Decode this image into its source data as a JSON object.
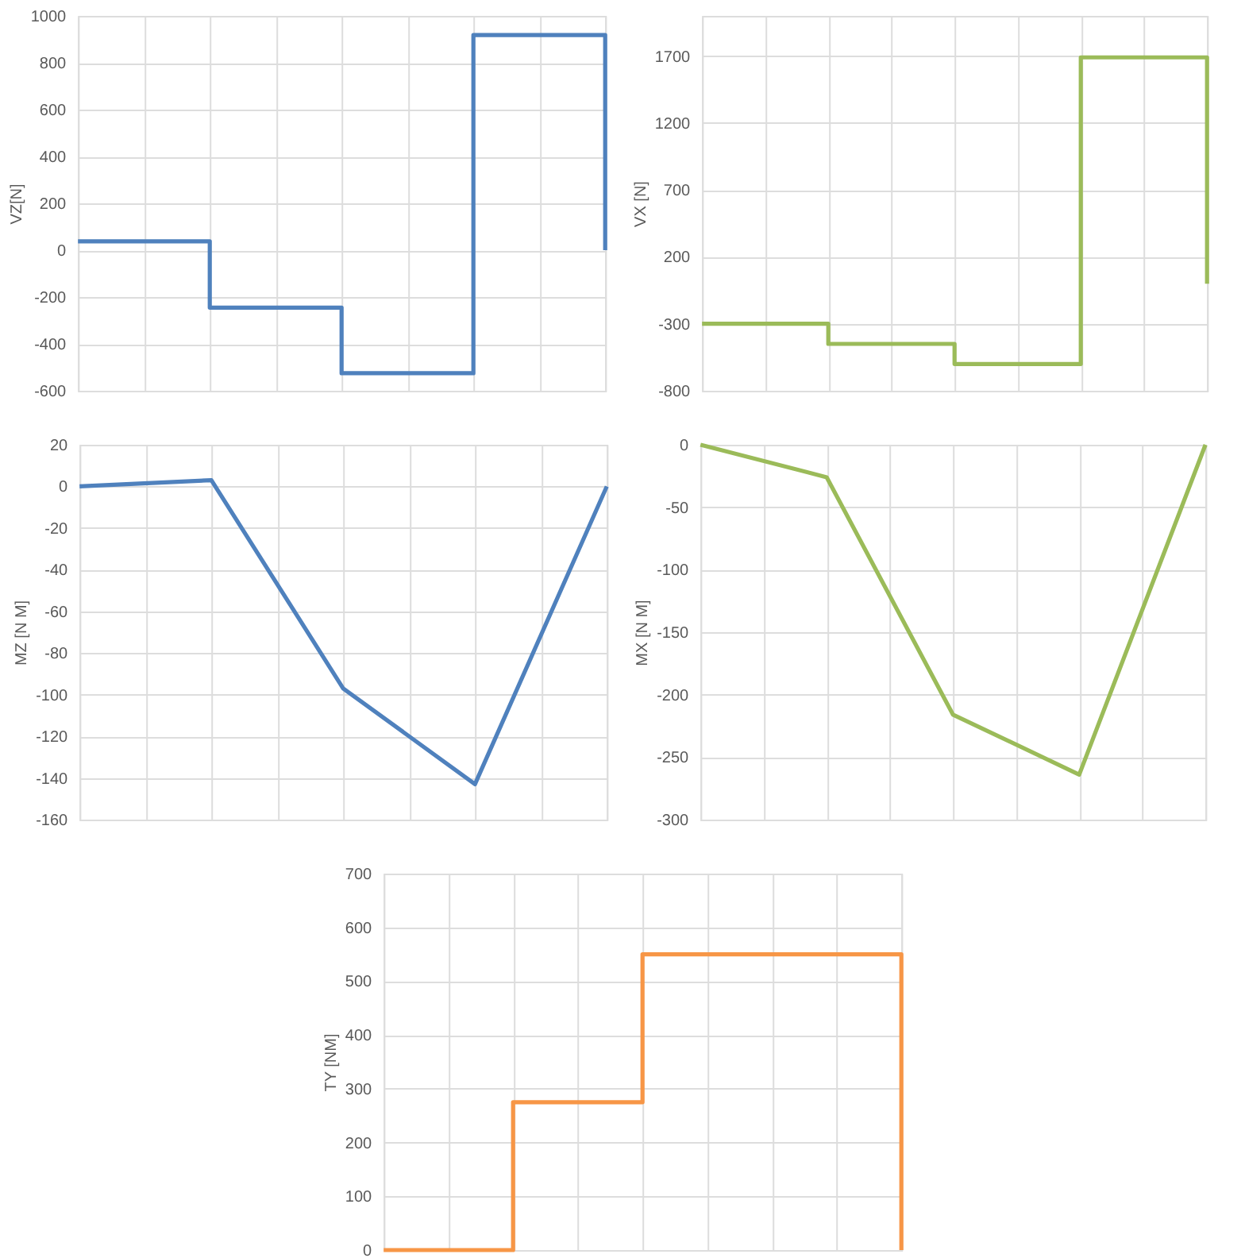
{
  "chart_data": [
    {
      "type": "step",
      "ylabel": "VZ[N]",
      "color": "#4f81bd",
      "grid": true,
      "tick_labels": "y",
      "categories": [
        null,
        null,
        null,
        null,
        null,
        null,
        null,
        null,
        null
      ],
      "values": [
        38,
        38,
        -245,
        -245,
        -525,
        -525,
        918,
        918,
        0
      ],
      "ylim": [
        -600,
        1000
      ],
      "yticks": [
        -600,
        -400,
        -200,
        0,
        200,
        400,
        600,
        800,
        1000
      ]
    },
    {
      "type": "step",
      "ylabel": "VX [N]",
      "color": "#9bbb59",
      "grid": true,
      "tick_labels": "y",
      "categories": [
        null,
        null,
        null,
        null,
        null,
        null,
        null,
        null,
        null
      ],
      "values": [
        -300,
        -300,
        -450,
        -450,
        -600,
        -600,
        1690,
        1690,
        0
      ],
      "ylim": [
        -800,
        2000
      ],
      "yticks": [
        -800,
        -300,
        200,
        700,
        1200,
        1700
      ]
    },
    {
      "type": "line",
      "ylabel": "MZ [N M]",
      "color": "#4f81bd",
      "grid": true,
      "tick_labels": "y",
      "categories": [
        null,
        null,
        null,
        null,
        null
      ],
      "values": [
        0,
        3,
        -97,
        -143,
        0
      ],
      "ylim": [
        -160,
        20
      ],
      "yticks": [
        -160,
        -140,
        -120,
        -100,
        -80,
        -60,
        -40,
        -20,
        0,
        20
      ]
    },
    {
      "type": "line",
      "ylabel": "MX [N M]",
      "color": "#9bbb59",
      "grid": true,
      "tick_labels": "y",
      "categories": [
        null,
        null,
        null,
        null,
        null
      ],
      "values": [
        0,
        -26,
        -216,
        -264,
        0
      ],
      "ylim": [
        -300,
        0
      ],
      "yticks": [
        -300,
        -250,
        -200,
        -150,
        -100,
        -50,
        0
      ]
    },
    {
      "type": "step",
      "ylabel": "TY [NM]",
      "color": "#f79646",
      "grid": true,
      "tick_labels": "y",
      "categories": [
        null,
        null,
        null,
        null,
        null,
        null,
        null,
        null,
        null
      ],
      "values": [
        0,
        0,
        275,
        275,
        550,
        550,
        550,
        550,
        0
      ],
      "ylim": [
        0,
        700
      ],
      "yticks": [
        0,
        100,
        200,
        300,
        400,
        500,
        600,
        700
      ]
    }
  ]
}
